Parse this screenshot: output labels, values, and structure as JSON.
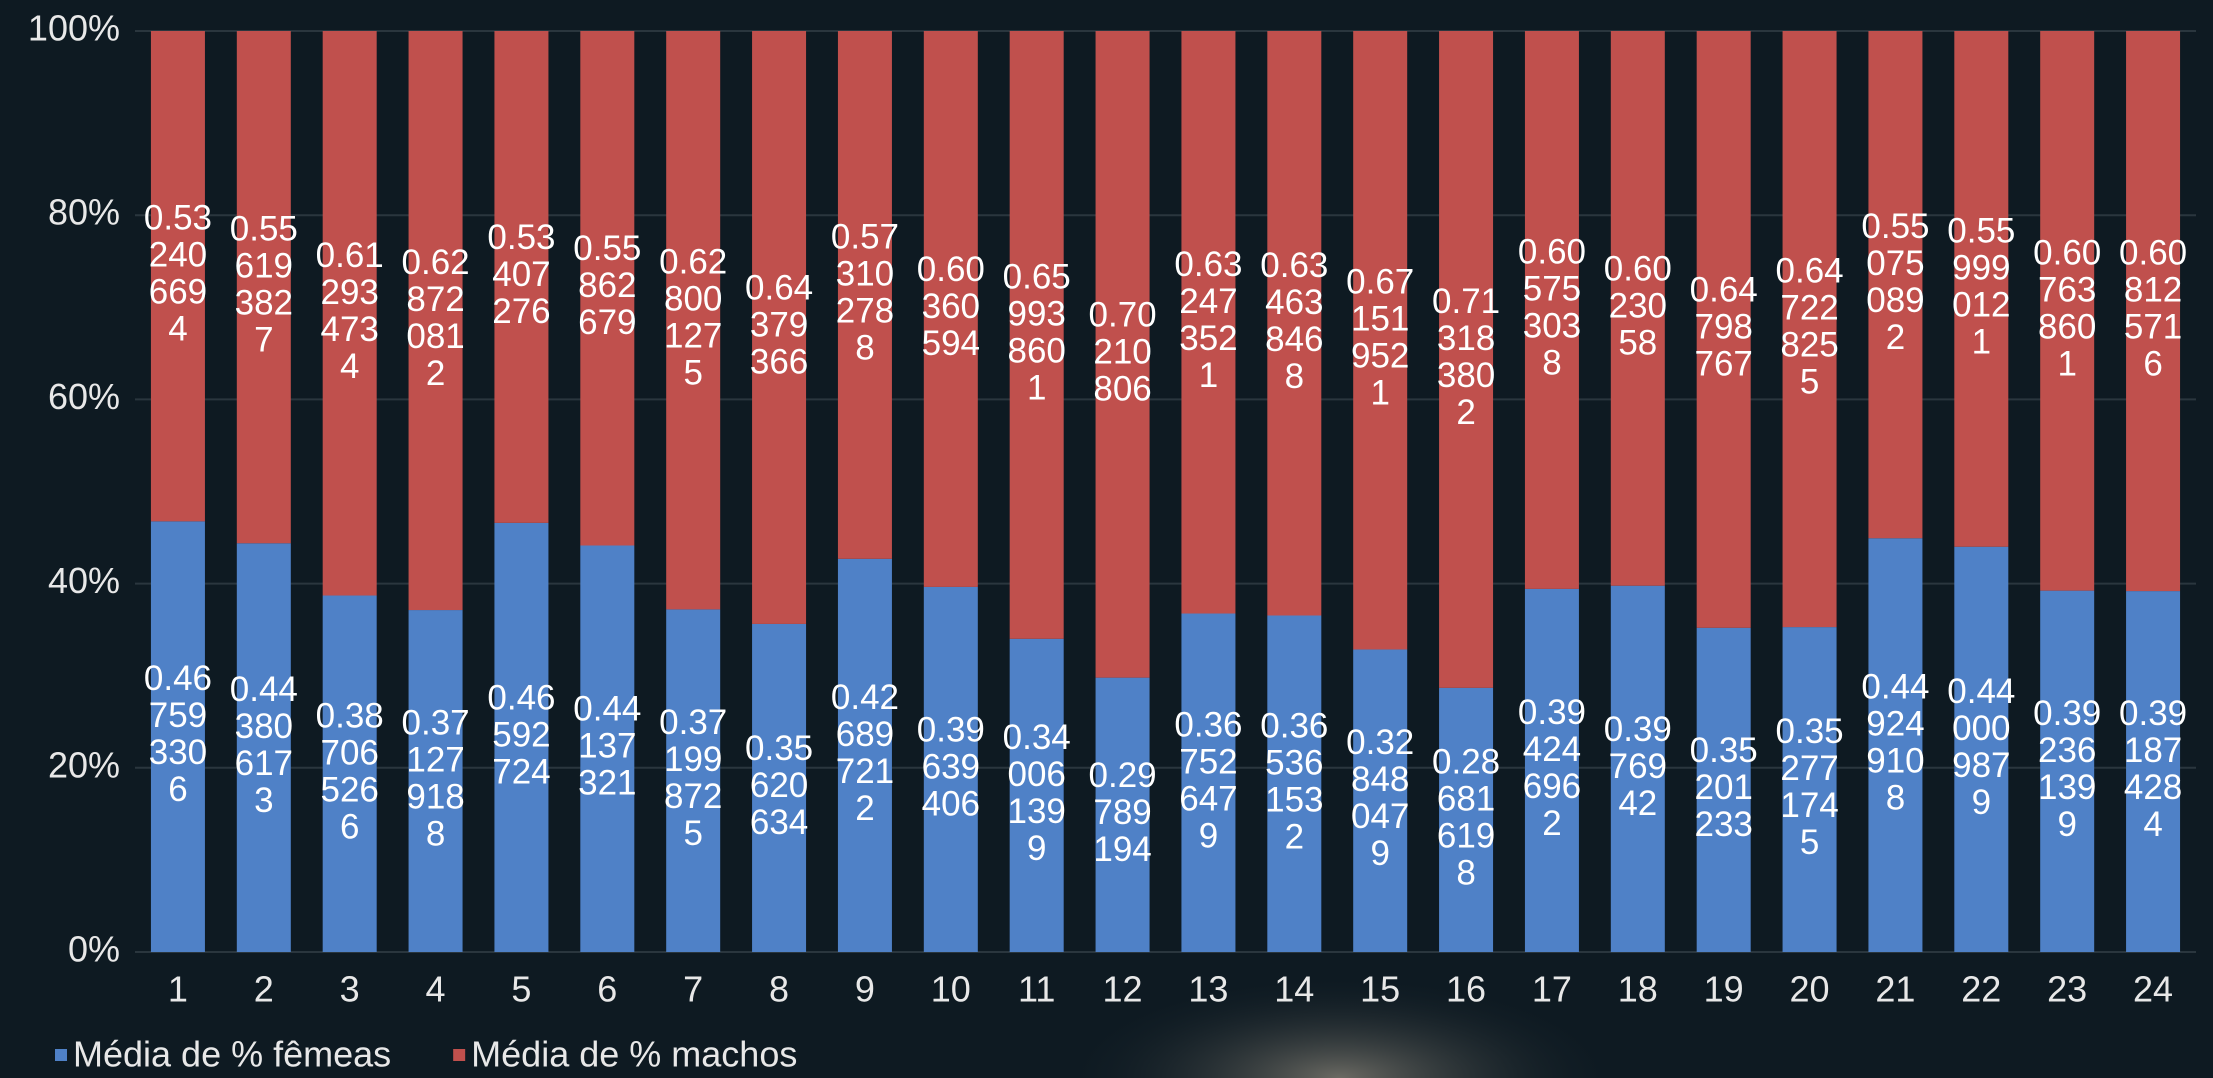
{
  "chart_data": {
    "type": "stacked-bar-100",
    "categories": [
      "1",
      "2",
      "3",
      "4",
      "5",
      "6",
      "7",
      "8",
      "9",
      "10",
      "11",
      "12",
      "13",
      "14",
      "15",
      "16",
      "17",
      "18",
      "19",
      "20",
      "21",
      "22",
      "23",
      "24"
    ],
    "ylim": [
      0,
      100
    ],
    "yticks": [
      {
        "value": 0,
        "label": "0%"
      },
      {
        "value": 20,
        "label": "20%"
      },
      {
        "value": 40,
        "label": "40%"
      },
      {
        "value": 60,
        "label": "60%"
      },
      {
        "value": 80,
        "label": "80%"
      },
      {
        "value": 100,
        "label": "100%"
      }
    ],
    "grid": true,
    "legend": "bottom-left",
    "series": [
      {
        "name": "Média de % fêmeas",
        "color": "#4f81c7",
        "values": [
          46.7593306,
          44.3806173,
          38.7065266,
          37.1279188,
          46.592724,
          44.137321,
          37.1998725,
          35.620634,
          42.6897212,
          39.639406,
          34.0061399,
          29.789194,
          36.7526479,
          36.5361532,
          32.8480479,
          28.6816198,
          39.4246962,
          39.76942,
          35.201233,
          35.2771745,
          44.9249108,
          44.0009879,
          39.2361399,
          39.1874284
        ],
        "value_labels": [
          "0.467593306",
          "0.443806173",
          "0.387065266",
          "0.371279188",
          "0.46592724",
          "0.44137321",
          "0.371998725",
          "0.35620634",
          "0.426897212",
          "0.39639406",
          "0.340061399",
          "0.29789194",
          "0.367526479",
          "0.365361532",
          "0.328480479",
          "0.286816198",
          "0.394246962",
          "0.3976942",
          "0.35201233",
          "0.352771745",
          "0.449249108",
          "0.440009879",
          "0.392361399",
          "0.391874284"
        ]
      },
      {
        "name": "Média de % machos",
        "color": "#c0504d",
        "values": [
          53.2406694,
          55.6193827,
          61.2934734,
          62.8720812,
          53.407276,
          55.862679,
          62.8001275,
          64.379366,
          57.3102788,
          60.360594,
          65.9938601,
          70.210806,
          63.2473521,
          63.4638468,
          67.1519521,
          71.3183802,
          60.5753038,
          60.23058,
          64.798767,
          64.7228255,
          55.0750892,
          55.9990121,
          60.7638601,
          60.8125716
        ],
        "value_labels": [
          "0.532406694",
          "0.556193827",
          "0.612934734",
          "0.628720812",
          "0.53407276",
          "0.55862679",
          "0.628001275",
          "0.64379366",
          "0.573102788",
          "0.60360594",
          "0.659938601",
          "0.70210806",
          "0.632473521",
          "0.634638468",
          "0.671519521",
          "0.713183802",
          "0.605753038",
          "0.6023058",
          "0.64798767",
          "0.647228255",
          "0.550750892",
          "0.559990121",
          "0.607638601",
          "0.608125716"
        ]
      }
    ]
  }
}
